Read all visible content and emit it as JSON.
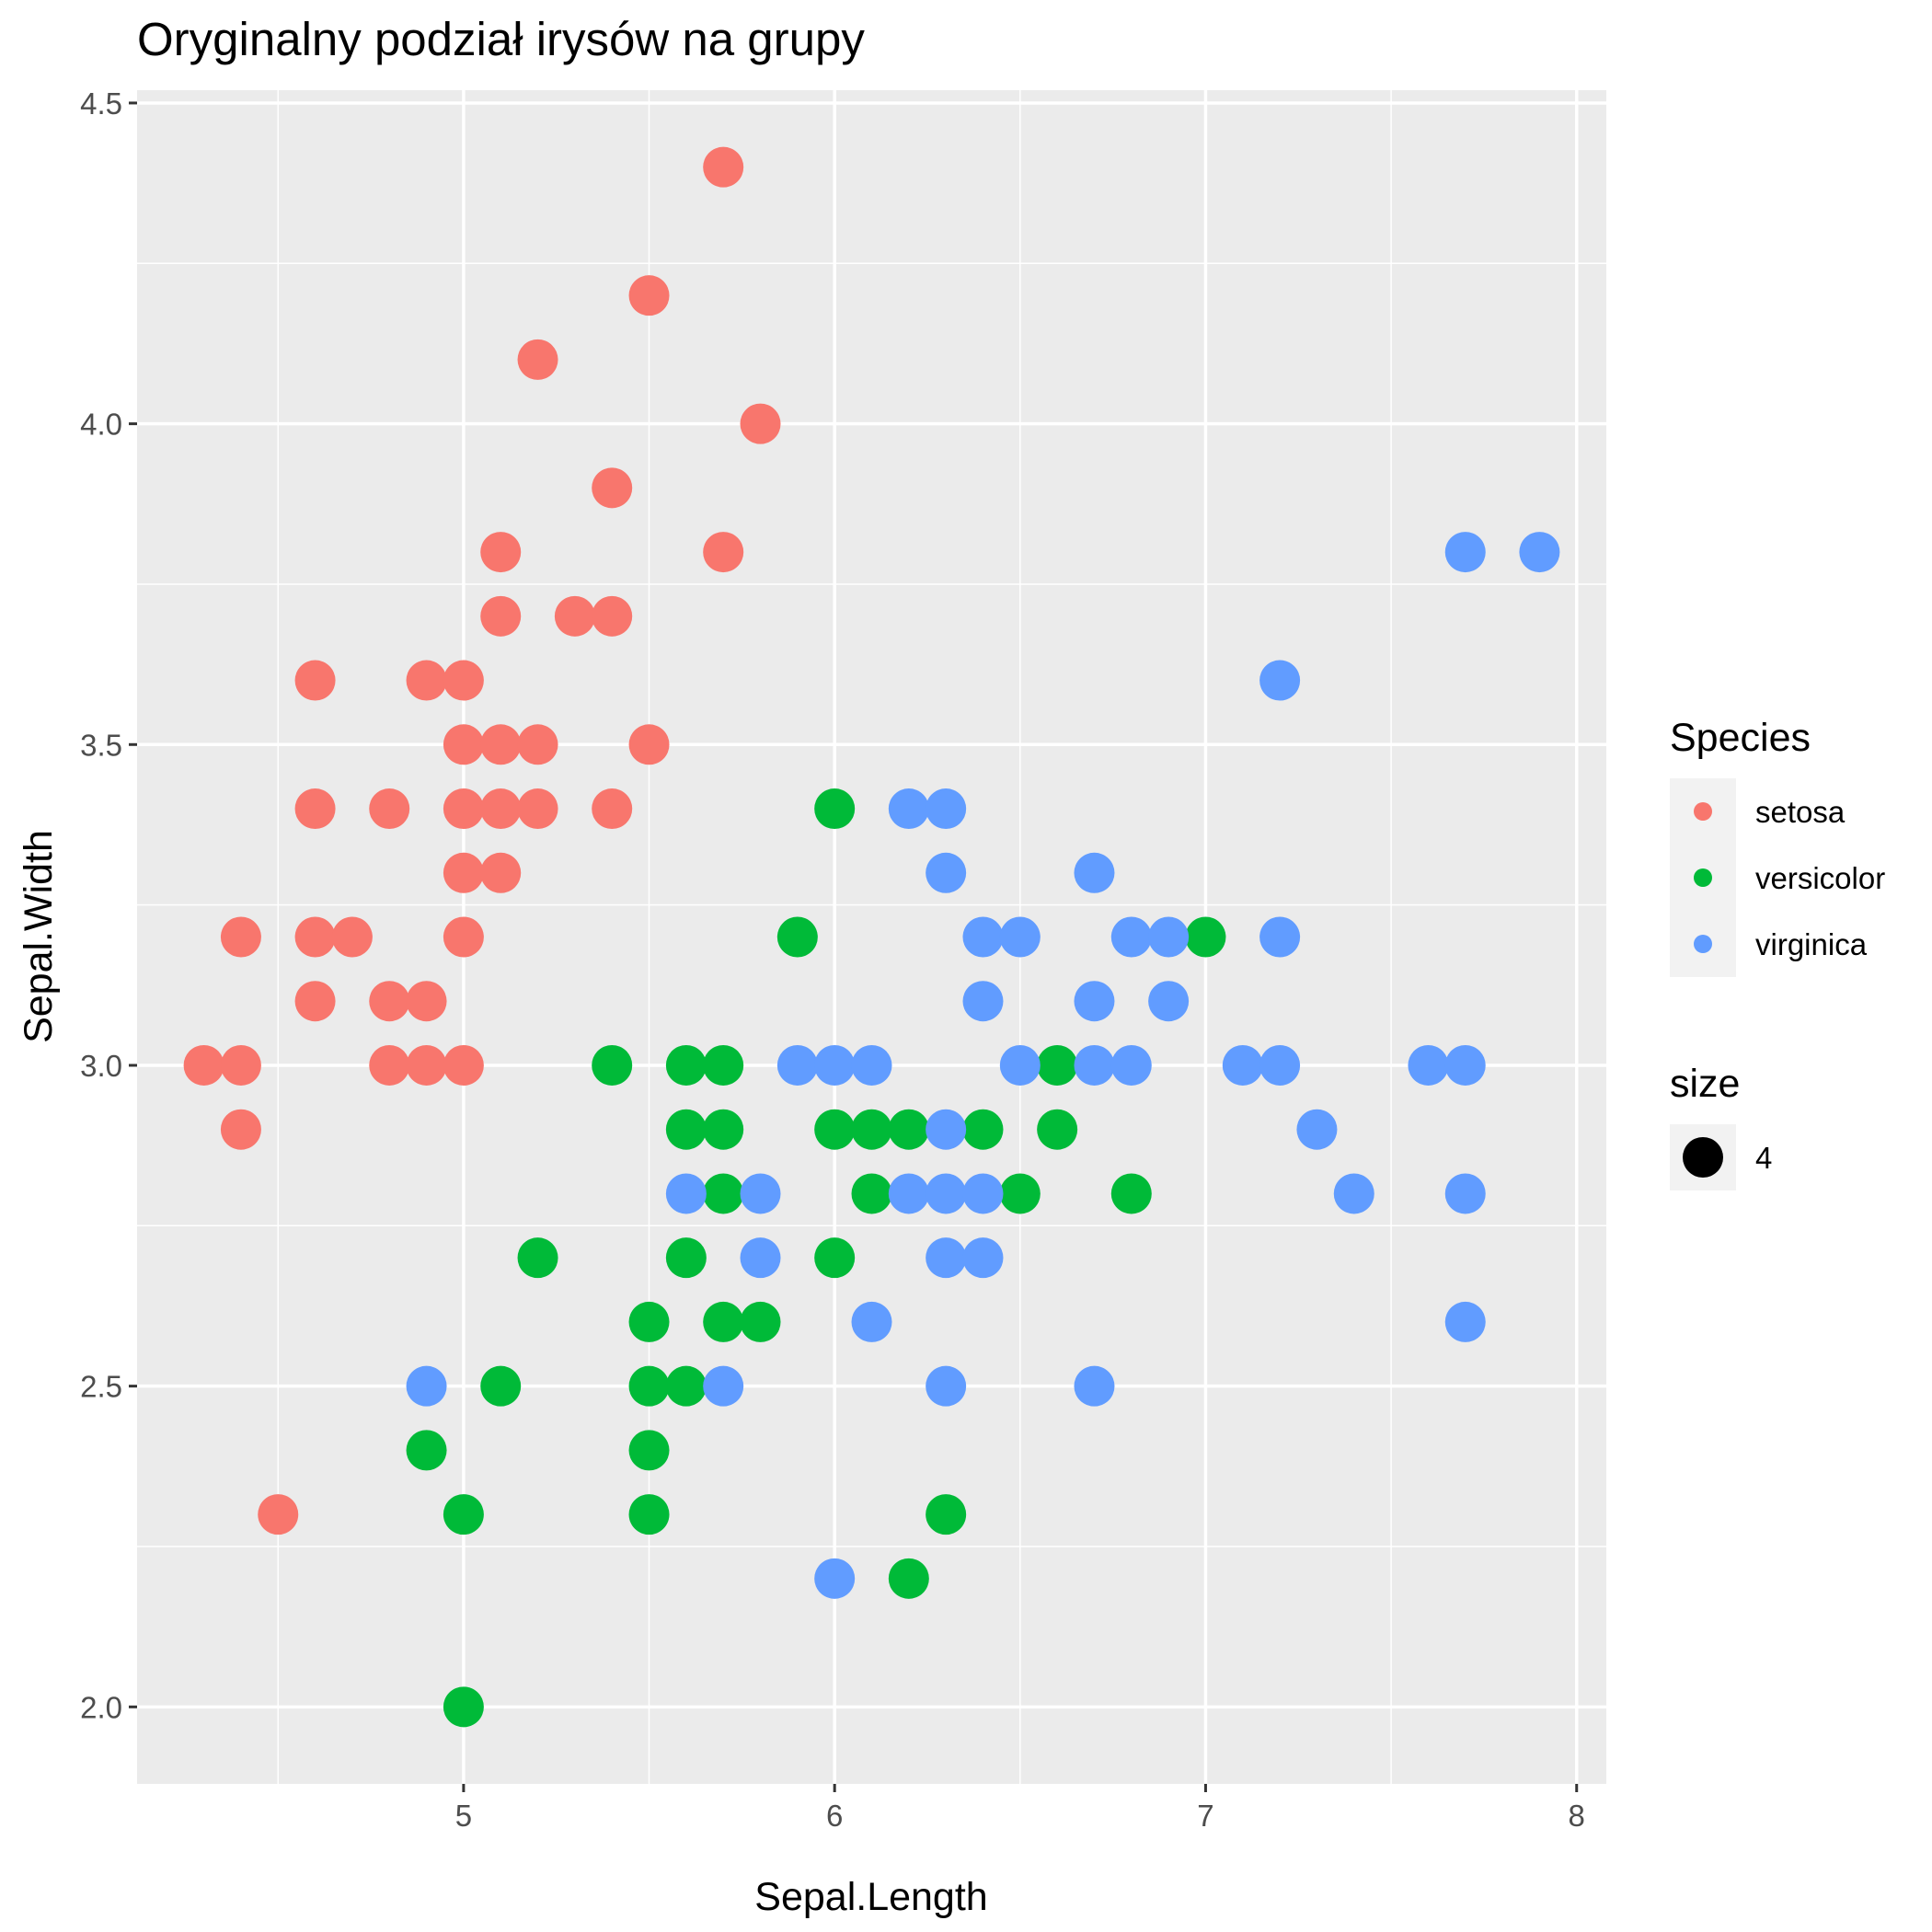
{
  "chart_data": {
    "type": "scatter",
    "title": "Oryginalny podział irysów na grupy",
    "xlabel": "Sepal.Length",
    "ylabel": "Sepal.Width",
    "xlim": [
      4.12,
      8.08
    ],
    "ylim": [
      1.88,
      4.52
    ],
    "x_ticks": [
      5,
      6,
      7,
      8
    ],
    "x_tick_labels": [
      "5",
      "6",
      "7",
      "8"
    ],
    "y_ticks": [
      2.0,
      2.5,
      3.0,
      3.5,
      4.0,
      4.5
    ],
    "y_tick_labels": [
      "2.0",
      "2.5",
      "3.0",
      "3.5",
      "4.0",
      "4.5"
    ],
    "grid": true,
    "background": "#ebebeb",
    "legend_position": "right",
    "legend": {
      "color_title": "Species",
      "size_title": "size",
      "size_label": "4"
    },
    "series": [
      {
        "name": "setosa",
        "color": "#f8766d",
        "points": [
          [
            5.7,
            4.4
          ],
          [
            5.5,
            4.2
          ],
          [
            5.2,
            4.1
          ],
          [
            5.8,
            4.0
          ],
          [
            5.4,
            3.9
          ],
          [
            5.1,
            3.8
          ],
          [
            5.7,
            3.8
          ],
          [
            5.1,
            3.7
          ],
          [
            5.3,
            3.7
          ],
          [
            5.4,
            3.7
          ],
          [
            4.6,
            3.6
          ],
          [
            4.9,
            3.6
          ],
          [
            5.0,
            3.6
          ],
          [
            5.0,
            3.5
          ],
          [
            5.1,
            3.5
          ],
          [
            5.2,
            3.5
          ],
          [
            5.5,
            3.5
          ],
          [
            4.6,
            3.4
          ],
          [
            4.8,
            3.4
          ],
          [
            5.0,
            3.4
          ],
          [
            5.1,
            3.4
          ],
          [
            5.2,
            3.4
          ],
          [
            5.4,
            3.4
          ],
          [
            5.0,
            3.3
          ],
          [
            5.1,
            3.3
          ],
          [
            4.4,
            3.2
          ],
          [
            4.6,
            3.2
          ],
          [
            4.7,
            3.2
          ],
          [
            5.0,
            3.2
          ],
          [
            4.6,
            3.1
          ],
          [
            4.8,
            3.1
          ],
          [
            4.9,
            3.1
          ],
          [
            4.3,
            3.0
          ],
          [
            4.4,
            3.0
          ],
          [
            4.8,
            3.0
          ],
          [
            4.9,
            3.0
          ],
          [
            5.0,
            3.0
          ],
          [
            4.4,
            2.9
          ],
          [
            4.5,
            2.3
          ]
        ]
      },
      {
        "name": "versicolor",
        "color": "#00ba38",
        "points": [
          [
            6.0,
            3.4
          ],
          [
            5.9,
            3.2
          ],
          [
            7.0,
            3.2
          ],
          [
            5.4,
            3.0
          ],
          [
            5.6,
            3.0
          ],
          [
            5.7,
            3.0
          ],
          [
            6.6,
            3.0
          ],
          [
            5.6,
            2.9
          ],
          [
            5.7,
            2.9
          ],
          [
            6.0,
            2.9
          ],
          [
            6.1,
            2.9
          ],
          [
            6.2,
            2.9
          ],
          [
            6.4,
            2.9
          ],
          [
            6.6,
            2.9
          ],
          [
            5.7,
            2.8
          ],
          [
            6.1,
            2.8
          ],
          [
            6.5,
            2.8
          ],
          [
            6.8,
            2.8
          ],
          [
            5.2,
            2.7
          ],
          [
            5.6,
            2.7
          ],
          [
            6.0,
            2.7
          ],
          [
            5.5,
            2.6
          ],
          [
            5.7,
            2.6
          ],
          [
            5.8,
            2.6
          ],
          [
            5.1,
            2.5
          ],
          [
            5.5,
            2.5
          ],
          [
            5.6,
            2.5
          ],
          [
            4.9,
            2.4
          ],
          [
            5.5,
            2.4
          ],
          [
            5.0,
            2.3
          ],
          [
            5.5,
            2.3
          ],
          [
            6.3,
            2.3
          ],
          [
            6.2,
            2.2
          ],
          [
            5.0,
            2.0
          ]
        ]
      },
      {
        "name": "virginica",
        "color": "#619cff",
        "points": [
          [
            7.7,
            3.8
          ],
          [
            7.9,
            3.8
          ],
          [
            7.2,
            3.6
          ],
          [
            6.2,
            3.4
          ],
          [
            6.3,
            3.4
          ],
          [
            6.3,
            3.3
          ],
          [
            6.7,
            3.3
          ],
          [
            6.4,
            3.2
          ],
          [
            6.5,
            3.2
          ],
          [
            6.8,
            3.2
          ],
          [
            6.9,
            3.2
          ],
          [
            7.2,
            3.2
          ],
          [
            6.4,
            3.1
          ],
          [
            6.7,
            3.1
          ],
          [
            6.9,
            3.1
          ],
          [
            5.9,
            3.0
          ],
          [
            6.0,
            3.0
          ],
          [
            6.1,
            3.0
          ],
          [
            6.5,
            3.0
          ],
          [
            6.7,
            3.0
          ],
          [
            6.8,
            3.0
          ],
          [
            7.1,
            3.0
          ],
          [
            7.2,
            3.0
          ],
          [
            7.6,
            3.0
          ],
          [
            7.7,
            3.0
          ],
          [
            6.3,
            2.9
          ],
          [
            7.3,
            2.9
          ],
          [
            5.6,
            2.8
          ],
          [
            5.8,
            2.8
          ],
          [
            6.2,
            2.8
          ],
          [
            6.3,
            2.8
          ],
          [
            6.4,
            2.8
          ],
          [
            7.4,
            2.8
          ],
          [
            7.7,
            2.8
          ],
          [
            5.8,
            2.7
          ],
          [
            6.3,
            2.7
          ],
          [
            6.4,
            2.7
          ],
          [
            6.1,
            2.6
          ],
          [
            7.7,
            2.6
          ],
          [
            4.9,
            2.5
          ],
          [
            5.7,
            2.5
          ],
          [
            6.3,
            2.5
          ],
          [
            6.7,
            2.5
          ],
          [
            6.0,
            2.2
          ]
        ]
      }
    ]
  }
}
